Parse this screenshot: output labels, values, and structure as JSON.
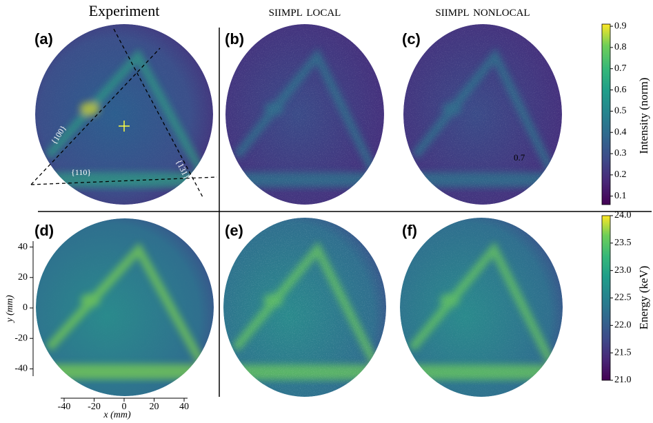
{
  "column_titles": [
    "Experiment",
    "siimpl local",
    "siimpl nonlocal"
  ],
  "panel_labels": [
    "(a)",
    "(b)",
    "(c)",
    "(d)",
    "(e)",
    "(f)"
  ],
  "annotations": [
    "{100}",
    "{131}",
    "{110}",
    "0.7"
  ],
  "axes": {
    "x_label": "x (mm)",
    "y_label": "y (mm)",
    "xlim": [
      -40,
      40
    ],
    "ylim": [
      -40,
      40
    ],
    "xticks": [
      -40,
      -20,
      0,
      20,
      40
    ],
    "yticks": [
      -40,
      -20,
      0,
      20,
      40
    ]
  },
  "colorbars": [
    {
      "label": "Intensity (norm)",
      "lim": [
        0.06,
        0.91
      ],
      "ticks": [
        0.1,
        0.2,
        0.3,
        0.4,
        0.5,
        0.6,
        0.7,
        0.8,
        0.9
      ]
    },
    {
      "label": "Energy (keV)",
      "lim": [
        21,
        24
      ],
      "ticks": [
        {
          "value": 21,
          "label": "21.0"
        },
        21.5,
        {
          "value": 22,
          "label": "22.0"
        },
        22.5,
        {
          "value": 23,
          "label": "23.0"
        },
        23.5,
        {
          "value": 24,
          "label": "24.0"
        }
      ]
    }
  ]
}
